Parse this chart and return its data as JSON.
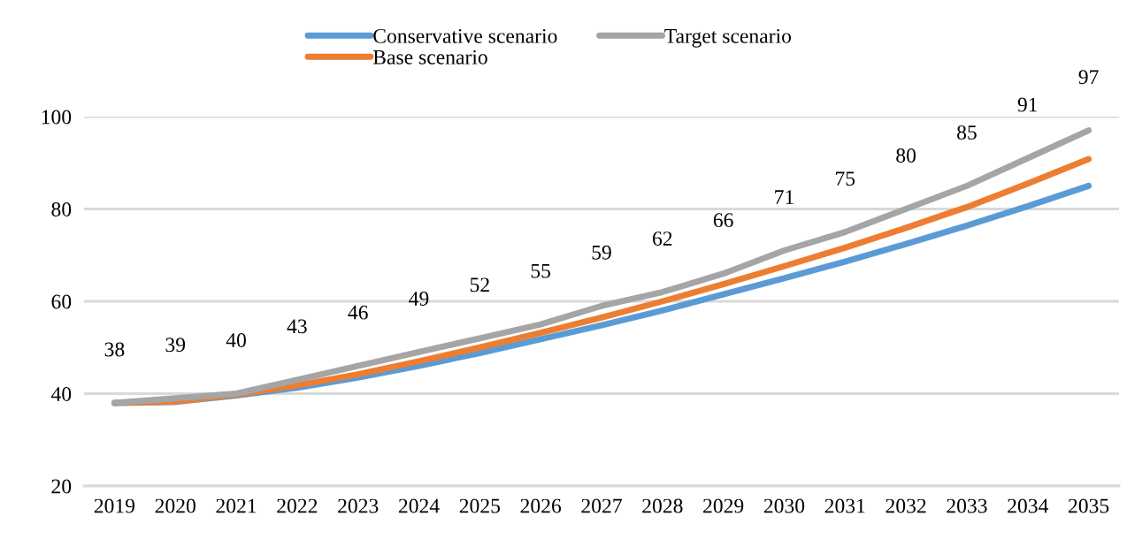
{
  "chart_data": {
    "type": "line",
    "categories": [
      "2019",
      "2020",
      "2021",
      "2022",
      "2023",
      "2024",
      "2025",
      "2026",
      "2027",
      "2028",
      "2029",
      "2030",
      "2031",
      "2032",
      "2033",
      "2034",
      "2035"
    ],
    "series": [
      {
        "name": "Conservative scenario",
        "color": "#5b9bd5",
        "values": [
          38,
          38.2,
          39.6,
          41.3,
          43.5,
          46,
          48.8,
          51.8,
          54.8,
          58,
          61.5,
          65,
          68.6,
          72.4,
          76.4,
          80.6,
          85
        ]
      },
      {
        "name": "Base scenario",
        "color": "#ed7d31",
        "values": [
          38,
          38.3,
          39.8,
          41.8,
          44.2,
          47,
          50,
          53.2,
          56.5,
          60,
          63.7,
          67.6,
          71.6,
          75.9,
          80.4,
          85.5,
          90.8
        ]
      },
      {
        "name": "Target scenario",
        "color": "#a5a5a5",
        "values": [
          38,
          39,
          40,
          43,
          46,
          49,
          52,
          55,
          59,
          62,
          66,
          71,
          75,
          80,
          85,
          91,
          97
        ],
        "data_labels": true
      }
    ],
    "ylim": [
      20,
      100
    ],
    "yticks": [
      20,
      40,
      60,
      80,
      100
    ],
    "grid": "y",
    "legend": "top",
    "marker": "none",
    "line_style": "solid"
  }
}
